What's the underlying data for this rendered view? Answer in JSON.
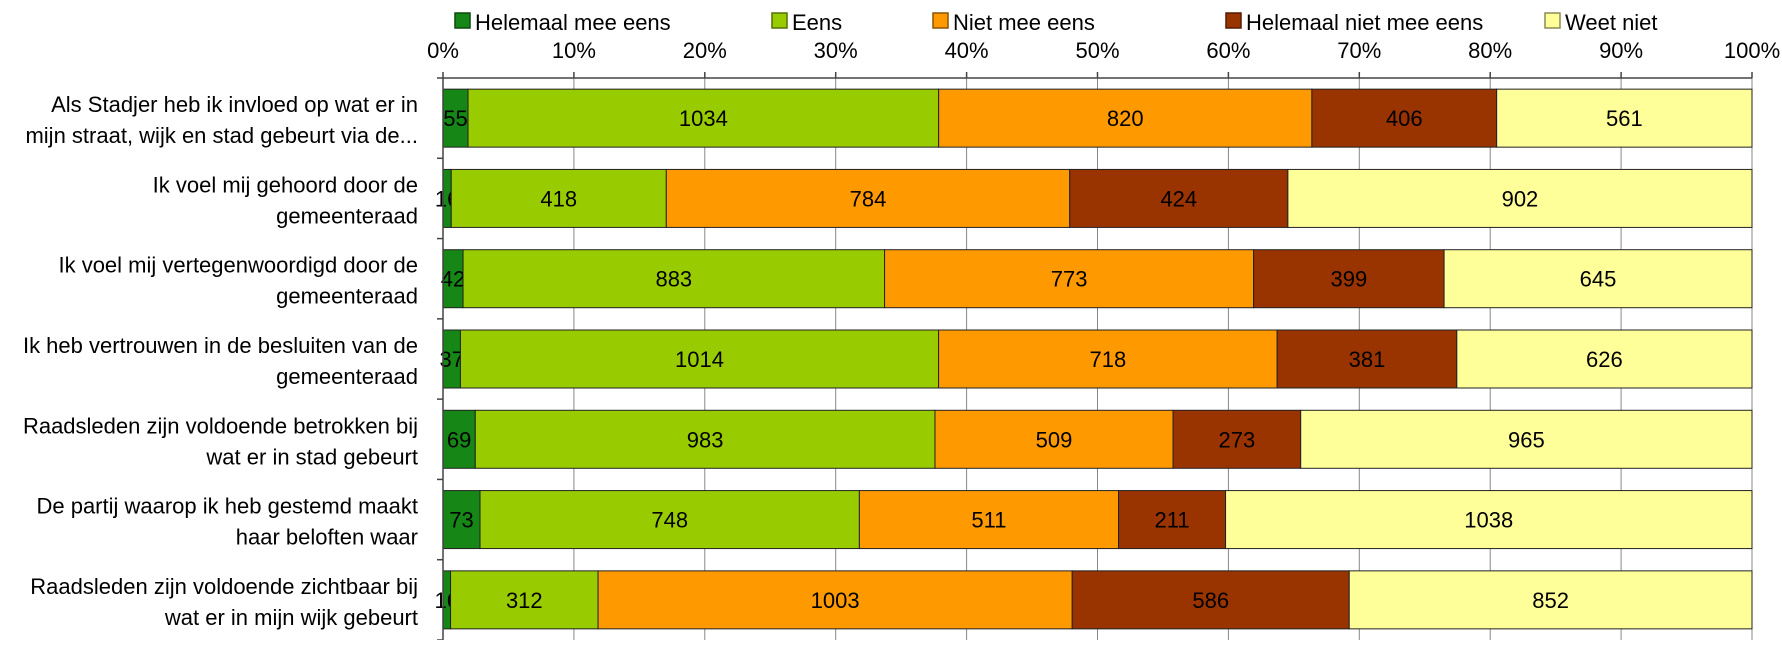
{
  "chart_data": {
    "type": "bar",
    "orientation": "horizontal",
    "stacking": "percent",
    "legend_position": "top",
    "grid": true,
    "xlim": [
      0,
      100
    ],
    "x_ticks": [
      "0%",
      "10%",
      "20%",
      "30%",
      "40%",
      "50%",
      "60%",
      "70%",
      "80%",
      "90%",
      "100%"
    ],
    "categories": [
      [
        "Als Stadjer heb ik invloed op wat er in",
        "mijn straat, wijk en stad gebeurt via de..."
      ],
      [
        "Ik voel mij gehoord door de",
        "gemeenteraad"
      ],
      [
        "Ik voel mij vertegenwoordigd door de",
        "gemeenteraad"
      ],
      [
        "Ik heb vertrouwen in de besluiten van de",
        "gemeenteraad"
      ],
      [
        "Raadsleden zijn voldoende betrokken bij",
        "wat er in stad gebeurt"
      ],
      [
        "De partij waarop ik heb gestemd maakt",
        "haar beloften waar"
      ],
      [
        "Raadsleden zijn voldoende zichtbaar bij",
        "wat er in mijn wijk gebeurt"
      ]
    ],
    "series": [
      {
        "name": "Helemaal mee eens",
        "color": "#168716",
        "values": [
          55,
          16,
          42,
          37,
          69,
          73,
          16
        ]
      },
      {
        "name": "Eens",
        "color": "#99CC00",
        "values": [
          1034,
          418,
          883,
          1014,
          983,
          748,
          312
        ]
      },
      {
        "name": "Niet mee eens",
        "color": "#FF9900",
        "values": [
          820,
          784,
          773,
          718,
          509,
          511,
          1003
        ]
      },
      {
        "name": "Helemaal niet mee eens",
        "color": "#993300",
        "values": [
          406,
          424,
          399,
          381,
          273,
          211,
          586
        ]
      },
      {
        "name": "Weet niet",
        "color": "#FFFF99",
        "values": [
          561,
          902,
          645,
          626,
          965,
          1038,
          852
        ]
      }
    ]
  }
}
